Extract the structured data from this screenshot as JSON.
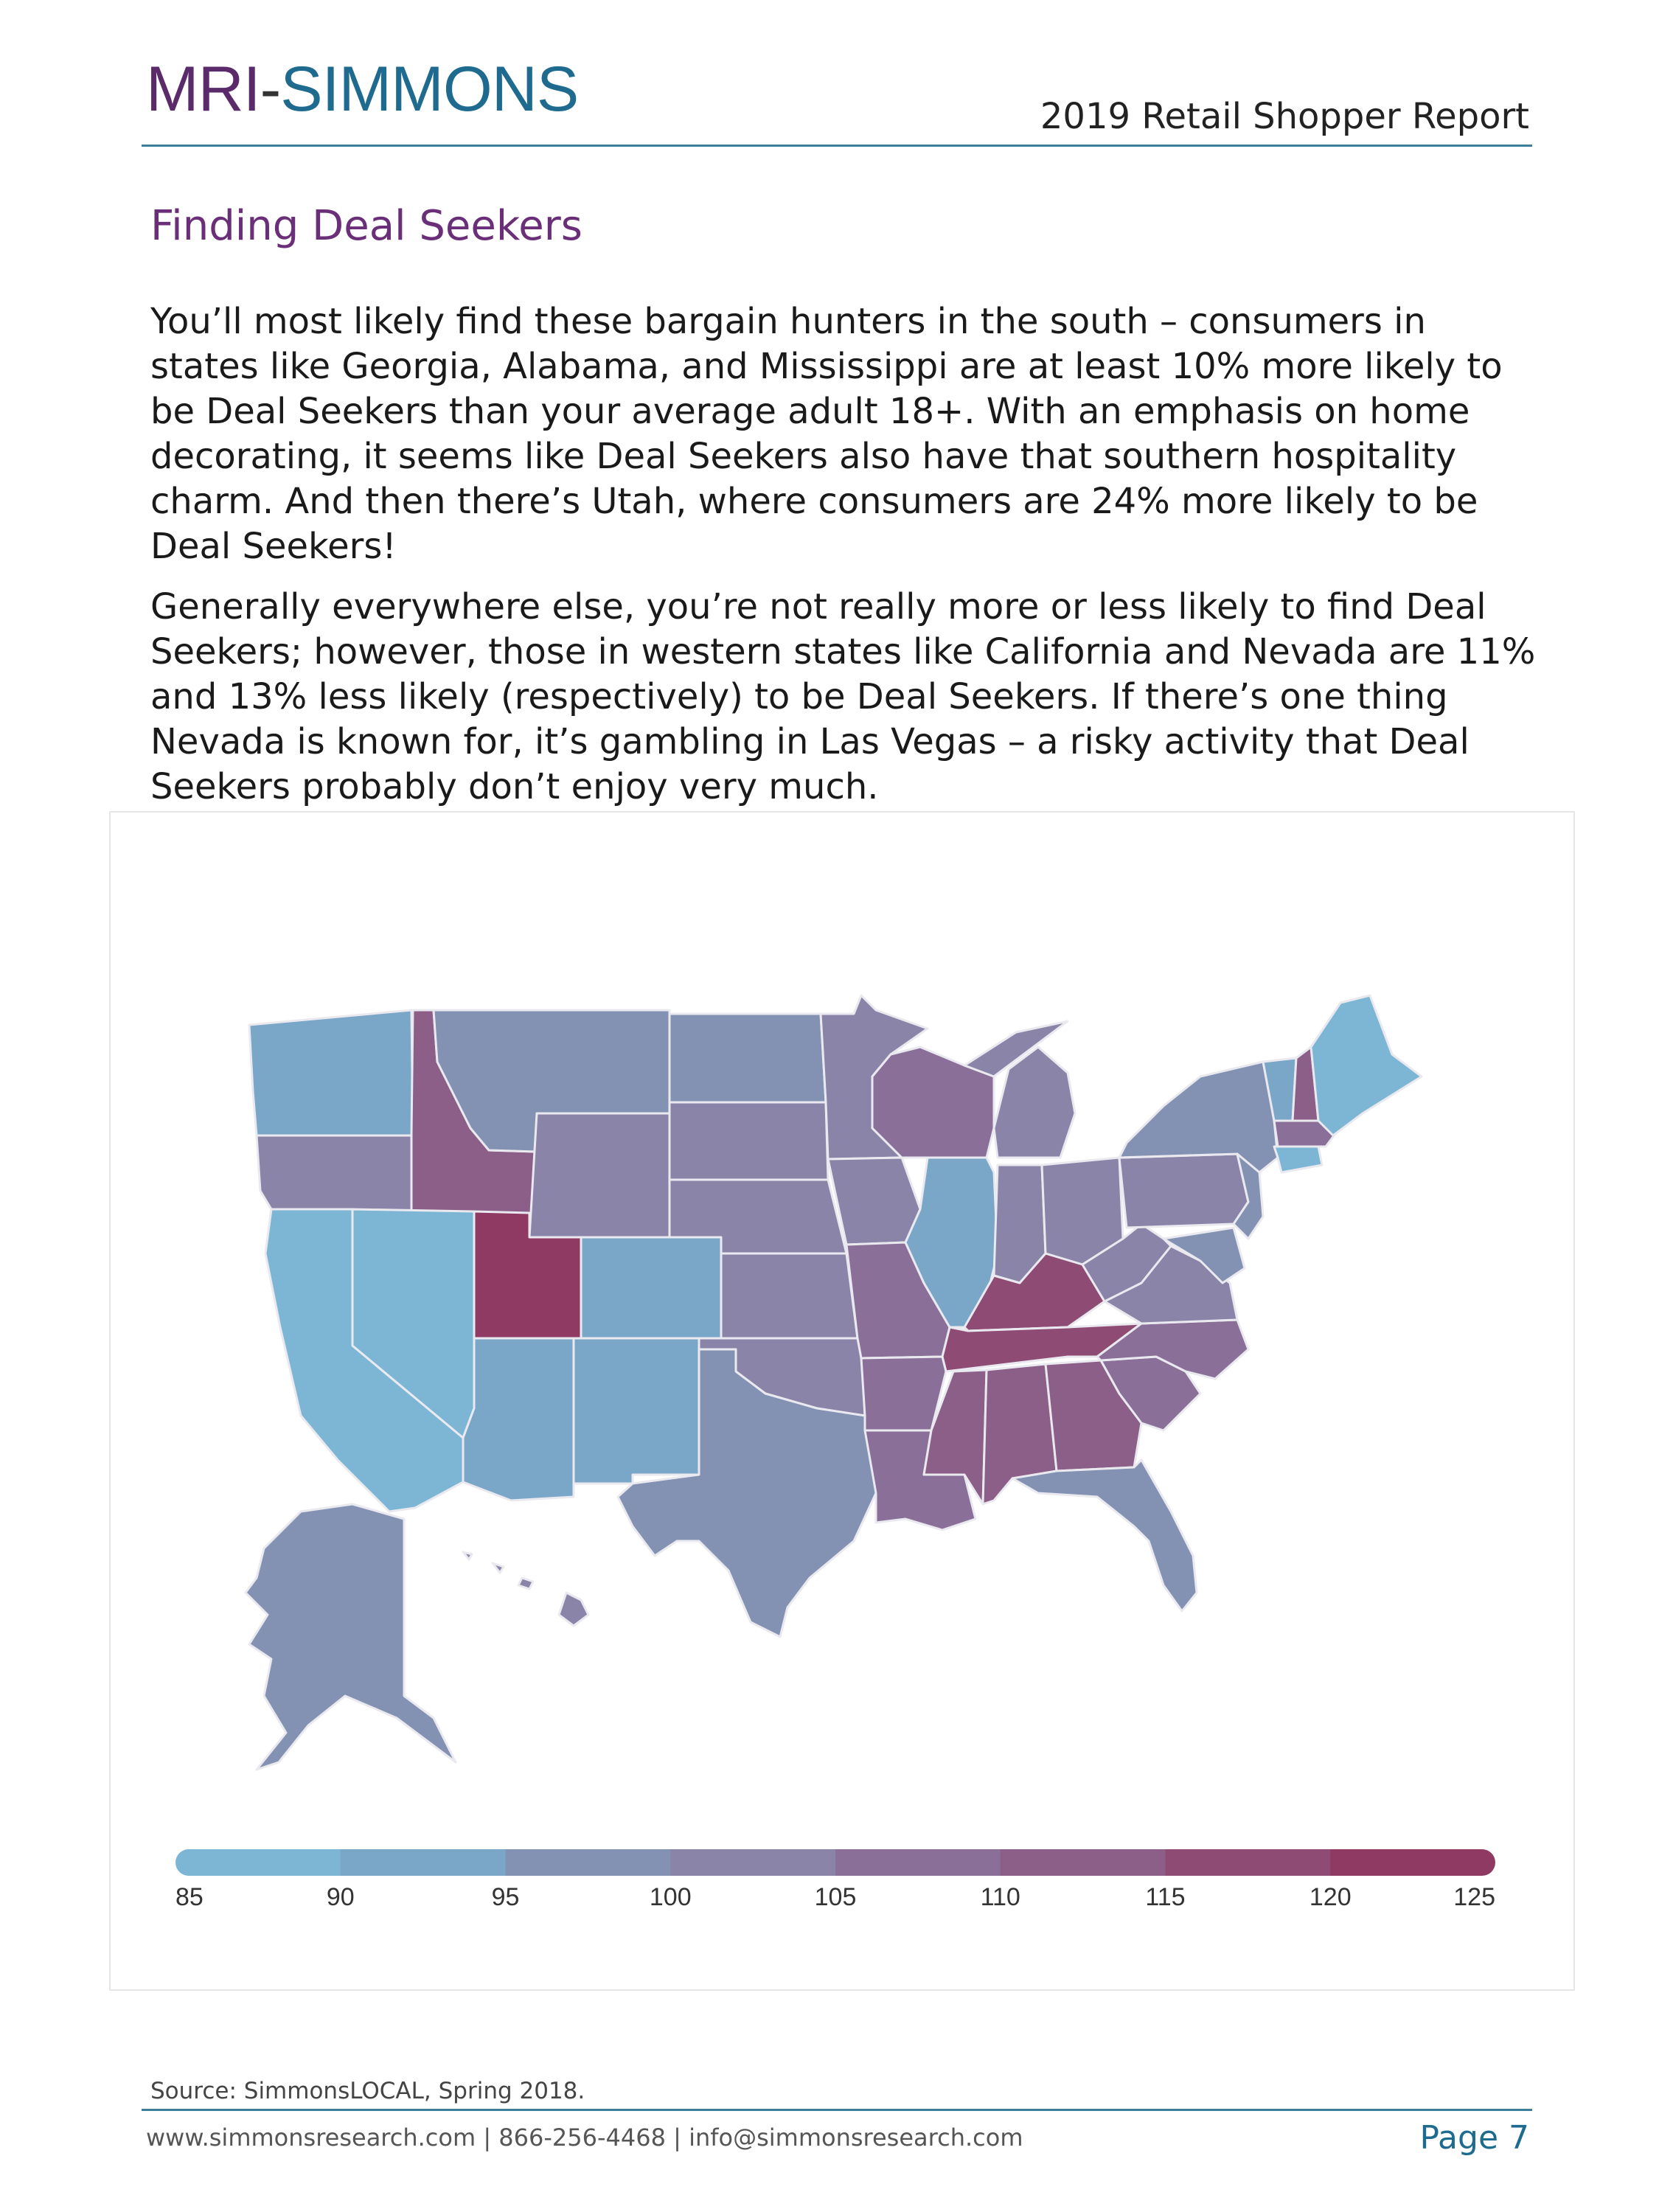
{
  "header": {
    "logo_part1": "MRI",
    "logo_dash": "-",
    "logo_part2": "SIMMONS",
    "report_title": "2019 Retail Shopper Report"
  },
  "section_title": "Finding Deal Seekers",
  "paragraphs": [
    "You’ll most likely find these bargain hunters in the south – consumers in states like Georgia, Alabama, and Mississippi are at least 10% more likely to be Deal Seekers than your average adult 18+. With an emphasis on home decorating, it seems like Deal Seekers also have that southern hospitality charm. And then there’s Utah, where consumers are 24% more likely to be Deal Seekers!",
    "Generally everywhere else, you’re not really more or less likely to find Deal Seekers; however, those in western states like California and Nevada are 11% and 13% less likely (respectively) to be Deal Seekers. If there’s one thing Nevada is known for, it’s gambling in Las Vegas – a risky activity that Deal Seekers probably don’t enjoy very much."
  ],
  "chart_data": {
    "type": "heatmap",
    "legend_ticks": [
      "85",
      "90",
      "95",
      "100",
      "105",
      "110",
      "115",
      "120",
      "125"
    ],
    "legend_range": [
      85,
      125
    ],
    "legend_colors": [
      "#7cb6d4",
      "#7aa6c8",
      "#8392b2",
      "#8a84a8",
      "#8a6f98",
      "#8b5f88",
      "#8e4b74",
      "#8f3a63"
    ],
    "states": [
      {
        "code": "UT",
        "index": 124
      },
      {
        "code": "NV",
        "index": 87
      },
      {
        "code": "CA",
        "index": 89
      },
      {
        "code": "GA",
        "index": 110
      },
      {
        "code": "AL",
        "index": 110
      },
      {
        "code": "MS",
        "index": 110
      }
    ]
  },
  "source": "Source: SimmonsLOCAL, Spring 2018.",
  "footer": {
    "contact": "www.simmonsresearch.com | 866-256-4468 | info@simmonsresearch.com",
    "page": "Page 7"
  }
}
